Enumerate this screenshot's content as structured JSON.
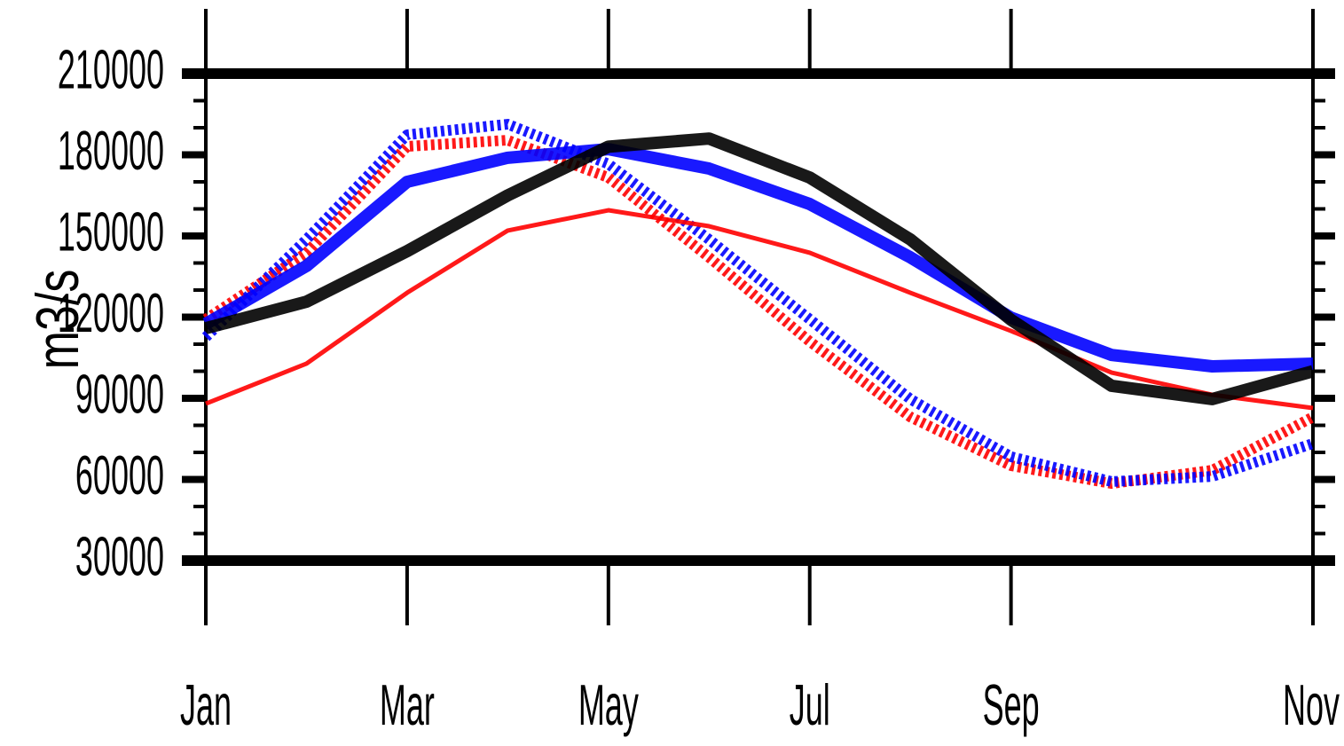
{
  "chart_data": {
    "type": "line",
    "y_label": "m3/s",
    "categories": [
      "Jan",
      null,
      "Mar",
      null,
      "May",
      null,
      "Jul",
      null,
      "Sep",
      null,
      null,
      "Nov"
    ],
    "series": [
      {
        "color": "#ff0000",
        "dash": "dotted",
        "values": [
          119200,
          143800,
          183100,
          185400,
          171600,
          142100,
          111000,
          83100,
          65100,
          58500,
          63400,
          83100
        ]
      },
      {
        "color": "#0000ff",
        "dash": "dotted",
        "values": [
          112600,
          148700,
          187400,
          191300,
          176600,
          148700,
          119200,
          89700,
          68400,
          59200,
          61100,
          73300
        ]
      },
      {
        "color": "#ff0000",
        "dash": "solid",
        "values": [
          88000,
          102800,
          129000,
          152000,
          159500,
          153600,
          143800,
          129000,
          114900,
          99500,
          91300,
          86400
        ]
      },
      {
        "color": "#0000ff",
        "dash": "solid",
        "values": [
          117500,
          138900,
          170000,
          178900,
          182100,
          174900,
          161800,
          142100,
          119800,
          106000,
          101800,
          102800
        ]
      },
      {
        "color": "#000000",
        "dash": "solid",
        "values": [
          115900,
          125700,
          144400,
          165000,
          183000,
          186000,
          171600,
          148700,
          119000,
          94600,
          89700,
          100000
        ]
      }
    ],
    "ylim": [
      30000,
      210000
    ],
    "yticks": [
      30000,
      60000,
      90000,
      120000,
      150000,
      180000,
      210000
    ]
  }
}
